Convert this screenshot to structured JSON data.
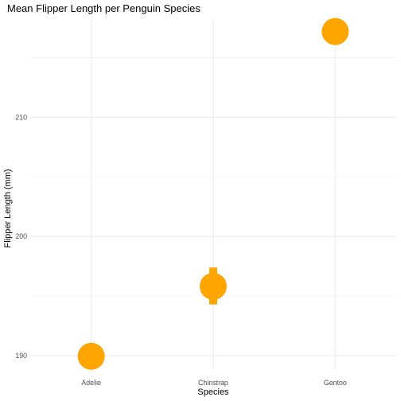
{
  "chart_data": {
    "type": "scatter",
    "title": "Mean Flipper Length per Penguin Species",
    "xlabel": "Species",
    "ylabel": "Flipper Length (mm)",
    "categories": [
      "Adelie",
      "Chinstrap",
      "Gentoo"
    ],
    "series": [
      {
        "values": [
          189.95,
          195.82,
          217.19
        ],
        "error_low": [
          189.4,
          194.3,
          216.8
        ],
        "error_high": [
          190.5,
          197.4,
          217.6
        ]
      }
    ],
    "y_ticks": [
      190,
      200,
      210
    ],
    "ylim": [
      188.8,
      218.3
    ],
    "grid": true,
    "point_color": "#FFA500"
  }
}
